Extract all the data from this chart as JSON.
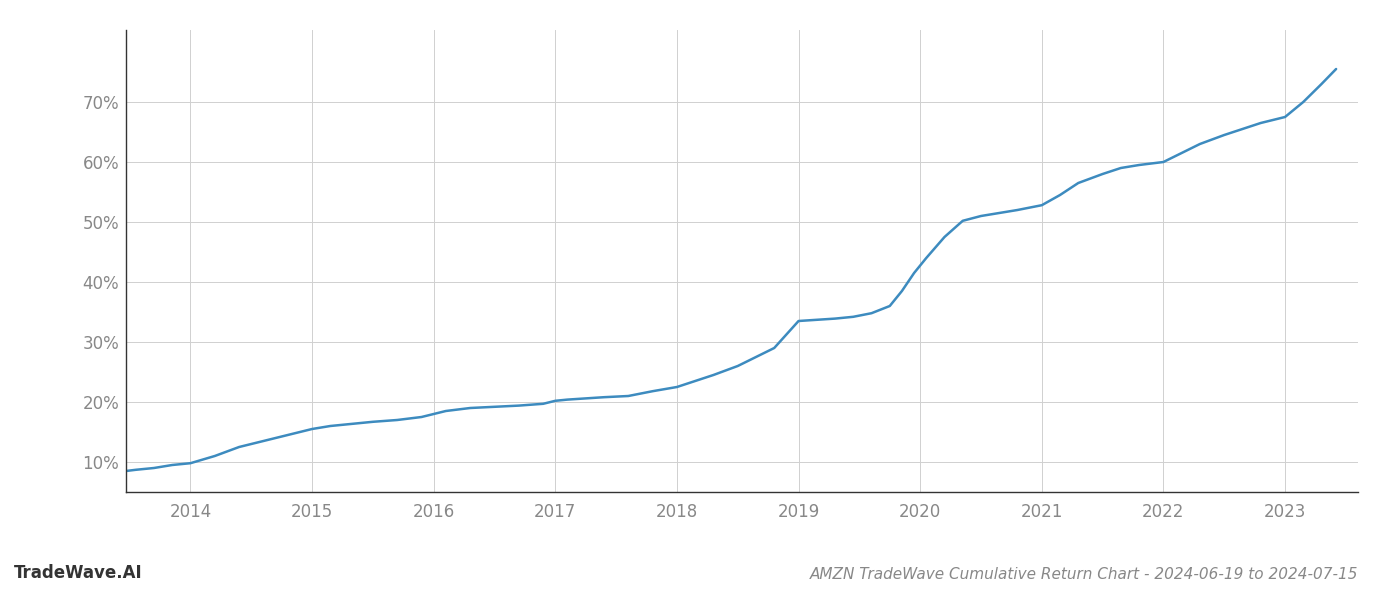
{
  "title": "AMZN TradeWave Cumulative Return Chart - 2024-06-19 to 2024-07-15",
  "watermark": "TradeWave.AI",
  "line_color": "#3d8bbf",
  "background_color": "#ffffff",
  "grid_color": "#d0d0d0",
  "x_data": [
    2013.47,
    2013.55,
    2013.7,
    2013.85,
    2014.0,
    2014.2,
    2014.4,
    2014.6,
    2014.8,
    2015.0,
    2015.15,
    2015.3,
    2015.5,
    2015.7,
    2015.9,
    2016.1,
    2016.3,
    2016.5,
    2016.7,
    2016.9,
    2017.0,
    2017.1,
    2017.25,
    2017.4,
    2017.6,
    2017.8,
    2018.0,
    2018.15,
    2018.3,
    2018.5,
    2018.65,
    2018.8,
    2019.0,
    2019.15,
    2019.3,
    2019.45,
    2019.6,
    2019.75,
    2019.85,
    2019.95,
    2020.05,
    2020.2,
    2020.35,
    2020.5,
    2020.65,
    2020.8,
    2021.0,
    2021.15,
    2021.3,
    2021.5,
    2021.65,
    2021.8,
    2022.0,
    2022.15,
    2022.3,
    2022.5,
    2022.65,
    2022.8,
    2023.0,
    2023.15,
    2023.3,
    2023.42
  ],
  "y_data": [
    8.5,
    8.7,
    9.0,
    9.5,
    9.8,
    11.0,
    12.5,
    13.5,
    14.5,
    15.5,
    16.0,
    16.3,
    16.7,
    17.0,
    17.5,
    18.5,
    19.0,
    19.2,
    19.4,
    19.7,
    20.2,
    20.4,
    20.6,
    20.8,
    21.0,
    21.8,
    22.5,
    23.5,
    24.5,
    26.0,
    27.5,
    29.0,
    33.5,
    33.7,
    33.9,
    34.2,
    34.8,
    36.0,
    38.5,
    41.5,
    44.0,
    47.5,
    50.2,
    51.0,
    51.5,
    52.0,
    52.8,
    54.5,
    56.5,
    58.0,
    59.0,
    59.5,
    60.0,
    61.5,
    63.0,
    64.5,
    65.5,
    66.5,
    67.5,
    70.0,
    73.0,
    75.5
  ],
  "ylim": [
    5,
    82
  ],
  "xlim": [
    2013.47,
    2023.6
  ],
  "yticks": [
    10,
    20,
    30,
    40,
    50,
    60,
    70
  ],
  "xtick_labels": [
    "2014",
    "2015",
    "2016",
    "2017",
    "2018",
    "2019",
    "2020",
    "2021",
    "2022",
    "2023"
  ],
  "xtick_positions": [
    2014,
    2015,
    2016,
    2017,
    2018,
    2019,
    2020,
    2021,
    2022,
    2023
  ],
  "line_width": 1.8,
  "title_fontsize": 11,
  "tick_fontsize": 12,
  "watermark_fontsize": 12
}
